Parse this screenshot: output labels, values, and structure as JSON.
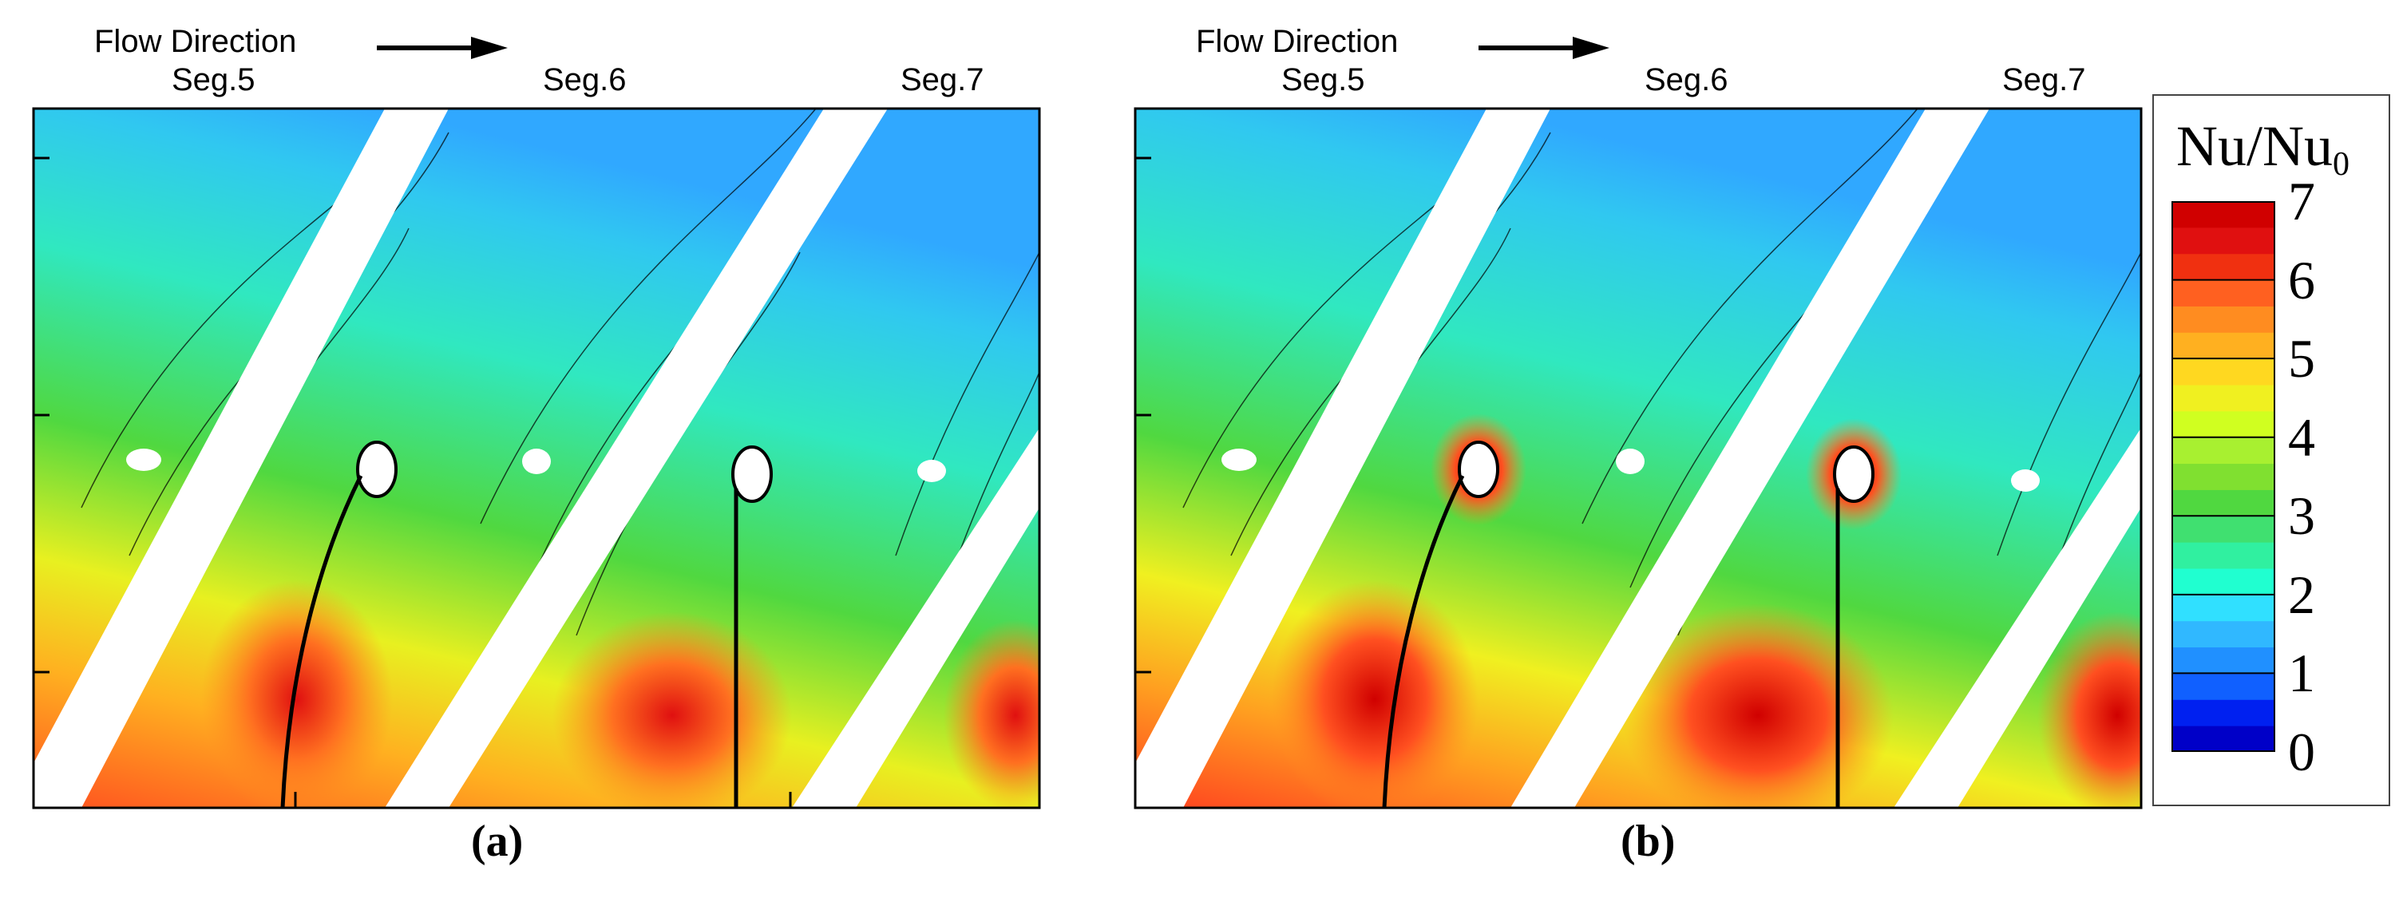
{
  "panels": [
    {
      "flow_label": "Flow Direction",
      "segments": [
        "Seg.5",
        "Seg.6",
        "Seg.7"
      ],
      "label": "(a)"
    },
    {
      "flow_label": "Flow Direction",
      "segments": [
        "Seg.5",
        "Seg.6",
        "Seg.7"
      ],
      "label": "(b)"
    }
  ],
  "legend": {
    "title_main": "Nu/Nu",
    "title_sub": "0",
    "ticks": [
      "7",
      "6",
      "5",
      "4",
      "3",
      "2",
      "1",
      "0"
    ],
    "colors": [
      "#0000c8",
      "#0020f0",
      "#1060ff",
      "#2090ff",
      "#30b8ff",
      "#30e0ff",
      "#20ffd0",
      "#30f0a0",
      "#40e070",
      "#50d840",
      "#80e030",
      "#a8f030",
      "#d0ff20",
      "#f0f020",
      "#ffd820",
      "#ffb020",
      "#ff8c20",
      "#ff6020",
      "#f03010",
      "#e01010",
      "#d00000"
    ]
  }
}
